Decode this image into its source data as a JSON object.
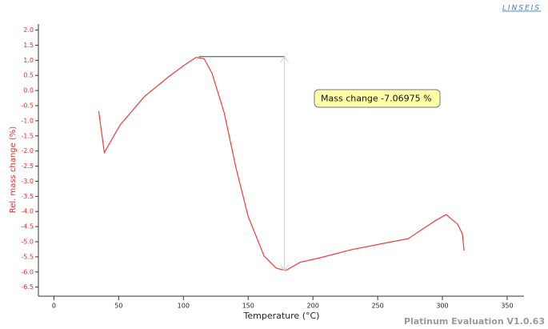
{
  "chart_data": {
    "type": "line",
    "brand": "LINSEIS",
    "footer": "Platinum Evaluation V1.0.63",
    "xlabel": "Temperature (°C)",
    "ylabel": "Rel. mass change (%)",
    "color": "#f03a3a",
    "x": [
      34.6,
      38.9,
      51.2,
      69.8,
      88.3,
      100.6,
      109.9,
      116,
      122,
      131.5,
      140.7,
      150,
      162.3,
      171.6,
      179,
      190,
      205.6,
      230,
      255,
      273.5,
      285.8,
      295,
      303,
      305.6,
      311.7,
      315.4,
      316.7
    ],
    "values": [
      -0.68,
      -2.05,
      -1.13,
      -0.2,
      0.45,
      0.84,
      1.1,
      1.05,
      0.58,
      -0.74,
      -2.58,
      -4.16,
      -5.47,
      -5.87,
      -5.95,
      -5.68,
      -5.53,
      -5.26,
      -5.05,
      -4.9,
      -4.55,
      -4.29,
      -4.1,
      -4.2,
      -4.42,
      -4.74,
      -5.29
    ],
    "xlim": [
      -12,
      363
    ],
    "xticks": [
      0,
      50,
      100,
      150,
      200,
      250,
      300,
      350
    ],
    "ylim": [
      -6.8,
      2.2
    ],
    "yticks": [
      {
        "value": 2,
        "label": "2.0"
      },
      1.5,
      {
        "value": 1,
        "label": "1.0"
      },
      0.5,
      {
        "value": 0,
        "label": "0.0"
      },
      -0.5,
      {
        "value": -1,
        "label": "-1.0"
      },
      -1.5,
      {
        "value": -2,
        "label": "-2.0"
      },
      -2.5,
      {
        "value": -3,
        "label": "-3.0"
      },
      -3.5,
      {
        "value": -4,
        "label": "-4.0"
      },
      -4.5,
      {
        "value": -5,
        "label": "-5.0"
      },
      -5.5,
      {
        "value": -6,
        "label": "-6.0"
      },
      -6.5
    ],
    "annotation": {
      "text": "Mass change  -7.06975 %",
      "x_start": 112,
      "x": 178,
      "y_top": 1.12,
      "y_bottom": -5.95
    }
  }
}
